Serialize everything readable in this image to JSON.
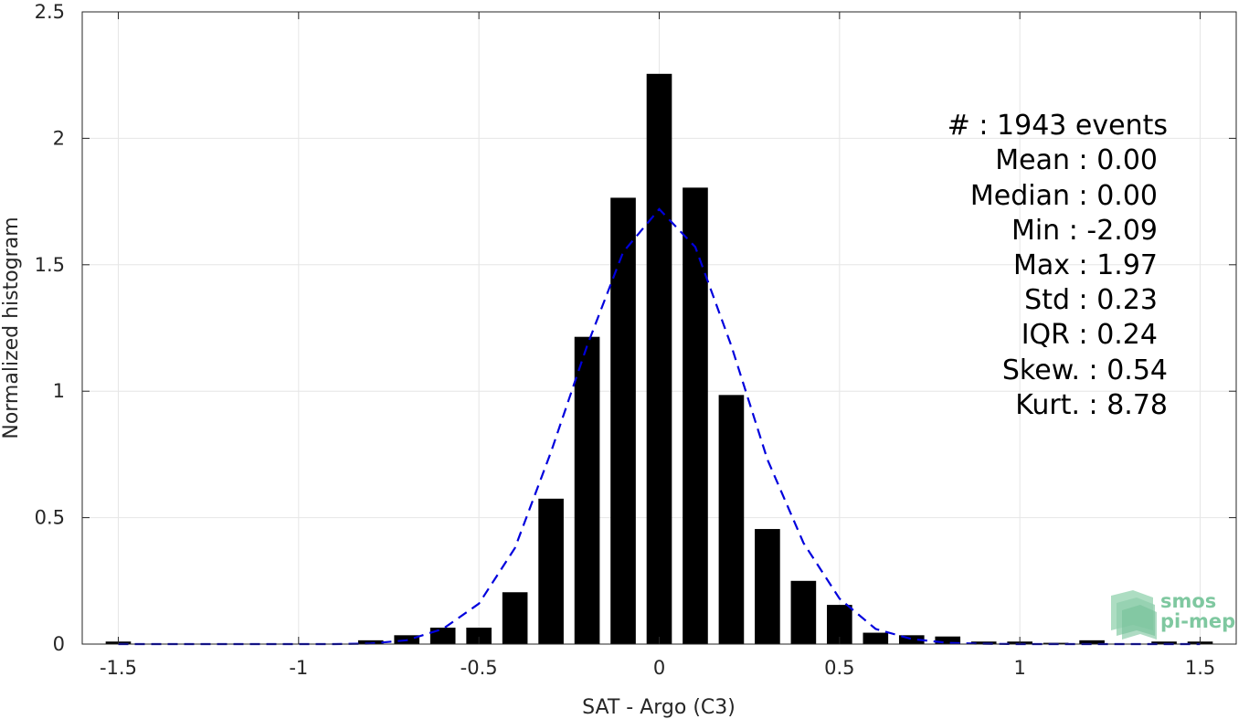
{
  "chart_data": {
    "type": "bar",
    "title": "",
    "xlabel": "SAT - Argo (C3)",
    "ylabel": "Normalized histogram",
    "xlim": [
      -1.6,
      1.6
    ],
    "ylim": [
      0,
      2.5
    ],
    "x_ticks": [
      -1.5,
      -1,
      -0.5,
      0,
      0.5,
      1,
      1.5
    ],
    "x_tick_labels": [
      "-1.5",
      "-1",
      "-0.5",
      "0",
      "0.5",
      "1",
      "1.5"
    ],
    "y_ticks": [
      0,
      0.5,
      1,
      1.5,
      2,
      2.5
    ],
    "y_tick_labels": [
      "0",
      "0.5",
      "1",
      "1.5",
      "2",
      "2.5"
    ],
    "grid": true,
    "series": [
      {
        "type": "bar",
        "color": "#000000",
        "bar_width": 0.07,
        "x": [
          -1.5,
          -0.8,
          -0.7,
          -0.6,
          -0.5,
          -0.4,
          -0.3,
          -0.2,
          -0.1,
          0.0,
          0.1,
          0.2,
          0.3,
          0.4,
          0.5,
          0.6,
          0.7,
          0.8,
          0.9,
          1.0,
          1.1,
          1.2,
          1.4,
          1.5
        ],
        "values": [
          0.01,
          0.015,
          0.035,
          0.065,
          0.065,
          0.205,
          0.575,
          1.215,
          1.765,
          2.255,
          1.805,
          0.985,
          0.455,
          0.25,
          0.155,
          0.045,
          0.035,
          0.03,
          0.01,
          0.01,
          0.005,
          0.015,
          0.01,
          0.01
        ]
      },
      {
        "type": "line",
        "style": "dashed",
        "color": "#0000dd",
        "x": [
          -1.5,
          -1.4,
          -1.3,
          -1.2,
          -1.1,
          -1.0,
          -0.9,
          -0.8,
          -0.7,
          -0.6,
          -0.5,
          -0.4,
          -0.3,
          -0.2,
          -0.1,
          0.0,
          0.1,
          0.2,
          0.3,
          0.4,
          0.5,
          0.6,
          0.7,
          0.8,
          0.9,
          1.0,
          1.1,
          1.2,
          1.3,
          1.4,
          1.5
        ],
        "values": [
          0.0,
          0.0,
          0.0,
          0.0,
          0.0,
          0.0,
          0.0,
          0.002,
          0.015,
          0.06,
          0.16,
          0.38,
          0.76,
          1.18,
          1.55,
          1.72,
          1.57,
          1.18,
          0.73,
          0.4,
          0.18,
          0.06,
          0.02,
          0.005,
          0.001,
          0.0,
          0.0,
          0.0,
          0.0,
          0.0,
          0.0
        ]
      }
    ],
    "annotations": [
      "#  : 1943 events",
      "Mean : 0.00",
      "Median : 0.00",
      "Min : -2.09",
      "Max : 1.97",
      "Std : 0.23",
      "IQR : 0.24",
      "Skew. : 0.54",
      "Kurt. : 8.78"
    ]
  },
  "logo": {
    "line1": "smos",
    "line2": "pi-mep",
    "color": "#7fc8a0"
  }
}
